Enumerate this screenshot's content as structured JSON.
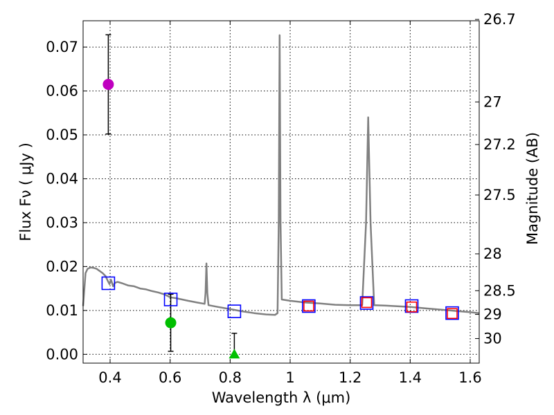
{
  "chart_data": {
    "type": "scatter",
    "title": "",
    "xlabel": "Wavelength  λ (μm)",
    "ylabel": "Flux  Fν  ( μJy )",
    "y2label": "Magnitude (AB)",
    "xlim": [
      0.31,
      1.63
    ],
    "ylim": [
      -0.002,
      0.076
    ],
    "xticks": [
      0.4,
      0.6,
      0.8,
      1.0,
      1.2,
      1.4,
      1.6
    ],
    "xtick_labels": [
      "0.4",
      "0.6",
      "0.8",
      "1",
      "1.2",
      "1.4",
      "1.6"
    ],
    "yticks": [
      0.0,
      0.01,
      0.02,
      0.03,
      0.04,
      0.05,
      0.06,
      0.07
    ],
    "ytick_labels": [
      "0.00",
      "0.01",
      "0.02",
      "0.03",
      "0.04",
      "0.05",
      "0.06",
      "0.07"
    ],
    "y2ticks": [
      {
        "label": "26.7",
        "flux": 0.0763
      },
      {
        "label": "27",
        "flux": 0.0575
      },
      {
        "label": "27.2",
        "flux": 0.0478
      },
      {
        "label": "27.5",
        "flux": 0.0363
      },
      {
        "label": "28",
        "flux": 0.0229
      },
      {
        "label": "28.5",
        "flux": 0.0145
      },
      {
        "label": "29",
        "flux": 0.0091
      },
      {
        "label": "30",
        "flux": 0.0036
      }
    ],
    "grid": true,
    "model_spectrum": {
      "name": "SED model",
      "color": "#808080",
      "points": [
        [
          0.31,
          0.011
        ],
        [
          0.318,
          0.0185
        ],
        [
          0.325,
          0.0195
        ],
        [
          0.335,
          0.0198
        ],
        [
          0.345,
          0.0197
        ],
        [
          0.355,
          0.0195
        ],
        [
          0.365,
          0.019
        ],
        [
          0.375,
          0.0185
        ],
        [
          0.385,
          0.0178
        ],
        [
          0.392,
          0.0168
        ],
        [
          0.398,
          0.016
        ],
        [
          0.403,
          0.017
        ],
        [
          0.41,
          0.0155
        ],
        [
          0.416,
          0.0163
        ],
        [
          0.425,
          0.0165
        ],
        [
          0.44,
          0.0162
        ],
        [
          0.46,
          0.0157
        ],
        [
          0.48,
          0.0155
        ],
        [
          0.5,
          0.015
        ],
        [
          0.52,
          0.0148
        ],
        [
          0.54,
          0.0144
        ],
        [
          0.56,
          0.0141
        ],
        [
          0.58,
          0.0137
        ],
        [
          0.6,
          0.013
        ],
        [
          0.62,
          0.0128
        ],
        [
          0.64,
          0.0125
        ],
        [
          0.66,
          0.0122
        ],
        [
          0.69,
          0.0118
        ],
        [
          0.715,
          0.0115
        ],
        [
          0.718,
          0.014
        ],
        [
          0.721,
          0.0207
        ],
        [
          0.724,
          0.014
        ],
        [
          0.728,
          0.0112
        ],
        [
          0.76,
          0.0108
        ],
        [
          0.8,
          0.0103
        ],
        [
          0.84,
          0.0098
        ],
        [
          0.88,
          0.0094
        ],
        [
          0.92,
          0.0091
        ],
        [
          0.95,
          0.009
        ],
        [
          0.958,
          0.0094
        ],
        [
          0.962,
          0.03
        ],
        [
          0.965,
          0.0727
        ],
        [
          0.968,
          0.03
        ],
        [
          0.972,
          0.0125
        ],
        [
          1.0,
          0.0122
        ],
        [
          1.05,
          0.0118
        ],
        [
          1.1,
          0.0116
        ],
        [
          1.15,
          0.0113
        ],
        [
          1.2,
          0.0112
        ],
        [
          1.24,
          0.0112
        ],
        [
          1.253,
          0.03
        ],
        [
          1.26,
          0.054
        ],
        [
          1.268,
          0.03
        ],
        [
          1.28,
          0.0112
        ],
        [
          1.32,
          0.0111
        ],
        [
          1.4,
          0.0108
        ],
        [
          1.45,
          0.0105
        ],
        [
          1.5,
          0.0102
        ],
        [
          1.55,
          0.0099
        ],
        [
          1.6,
          0.0096
        ],
        [
          1.63,
          0.0094
        ]
      ]
    },
    "series": [
      {
        "name": "magenta detection",
        "marker": "circle",
        "color": "#bf00bf",
        "points": [
          {
            "x": 0.394,
            "y": 0.0615,
            "err": 0.0113
          }
        ]
      },
      {
        "name": "green detection",
        "marker": "circle",
        "color": "#00bf00",
        "points": [
          {
            "x": 0.602,
            "y": 0.0072,
            "err": 0.0065
          }
        ]
      },
      {
        "name": "green upper limit",
        "marker": "triangle",
        "color": "#00bf00",
        "points": [
          {
            "x": 0.814,
            "y": 0.0,
            "err": 0.0048
          }
        ]
      },
      {
        "name": "model photometry",
        "marker": "square-open",
        "color": "#0000ff",
        "points": [
          {
            "x": 0.394,
            "y": 0.0162
          },
          {
            "x": 0.602,
            "y": 0.0125
          },
          {
            "x": 0.814,
            "y": 0.0098
          },
          {
            "x": 1.062,
            "y": 0.011
          },
          {
            "x": 1.255,
            "y": 0.0117
          },
          {
            "x": 1.405,
            "y": 0.011
          },
          {
            "x": 1.54,
            "y": 0.0094
          }
        ]
      },
      {
        "name": "observed photometry",
        "marker": "square-open",
        "color": "#ff0000",
        "points": [
          {
            "x": 1.062,
            "y": 0.011
          },
          {
            "x": 1.255,
            "y": 0.0118
          },
          {
            "x": 1.405,
            "y": 0.0108
          },
          {
            "x": 1.54,
            "y": 0.0093
          }
        ]
      }
    ]
  }
}
